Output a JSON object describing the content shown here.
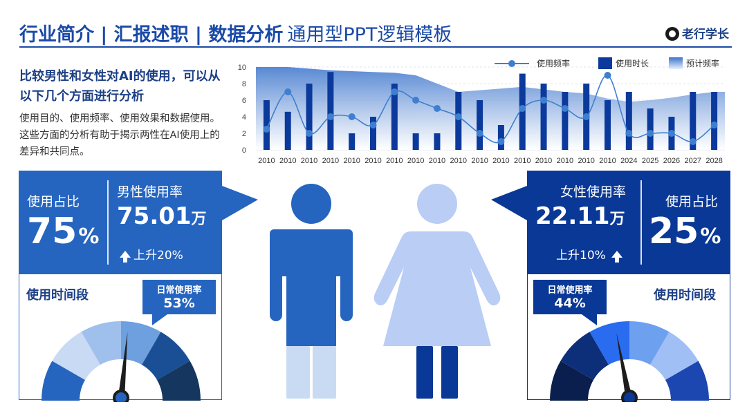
{
  "header": {
    "title_bold": "行业简介 | 汇报述职 | 数据分析",
    "title_sub": "通用型PPT逻辑模板",
    "brand": "老行学长"
  },
  "intro": {
    "title": "比较男性和女性对AI的使用，可以从以下几个方面进行分析",
    "body": "使用目的、使用频率、使用效果和数据使用。这些方面的分析有助于揭示两性在AI使用上的差异和共同点。"
  },
  "colors": {
    "primary": "#1a4aa8",
    "male": "#2565c0",
    "female_dark": "#0a3896",
    "female_light": "#b9cdf5",
    "male_light": "#c8dbf3"
  },
  "chart_data": {
    "type": "bar",
    "categories": [
      "2010",
      "2010",
      "2010",
      "2010",
      "2010",
      "2010",
      "2010",
      "2010",
      "2010",
      "2010",
      "2010",
      "2010",
      "2010",
      "2010",
      "2010",
      "2010",
      "2010",
      "2024",
      "2025",
      "2026",
      "2027",
      "2028"
    ],
    "series": [
      {
        "name": "使用频率",
        "type": "line",
        "values": [
          2.5,
          7,
          2,
          4,
          4,
          3,
          7,
          6,
          5,
          4,
          2,
          1,
          5,
          6,
          5,
          4,
          9,
          2,
          2,
          2,
          1,
          3
        ]
      },
      {
        "name": "使用时长",
        "type": "bar",
        "values": [
          6,
          4.6,
          8,
          9.4,
          2,
          4,
          8,
          2,
          2,
          7,
          6,
          3,
          9.2,
          8,
          7,
          8,
          6,
          7,
          5,
          4,
          7,
          7
        ]
      },
      {
        "name": "预计频率",
        "type": "area",
        "values": [
          10,
          10,
          9.8,
          9.6,
          9.5,
          9.4,
          9.3,
          9,
          8,
          7,
          7.2,
          7.4,
          7.6,
          7.3,
          7,
          6.8,
          6.2,
          5.8,
          6,
          6.3,
          6.7,
          7
        ]
      }
    ],
    "ylim": [
      0,
      10
    ],
    "yticks": [
      0,
      2,
      4,
      6,
      8,
      10
    ],
    "legend": [
      "使用频率",
      "使用时长",
      "预计频率"
    ],
    "legend_position": "top-right",
    "grid": true
  },
  "left_panel": {
    "share_label": "使用占比",
    "share_value": "75",
    "share_unit": "%",
    "rate_label": "男性使用率",
    "rate_value": "75.01",
    "rate_unit": "万",
    "rise_text": "上升20%",
    "period_label": "使用时间段",
    "daily_label": "日常使用率",
    "daily_value": "53%",
    "gauge_level": 0.53
  },
  "right_panel": {
    "share_label": "使用占比",
    "share_value": "25",
    "share_unit": "%",
    "rate_label": "女性使用率",
    "rate_value": "22.11",
    "rate_unit": "万",
    "rise_text": "上升10%",
    "period_label": "使用时间段",
    "daily_label": "日常使用率",
    "daily_value": "44%",
    "gauge_level": 0.44
  }
}
